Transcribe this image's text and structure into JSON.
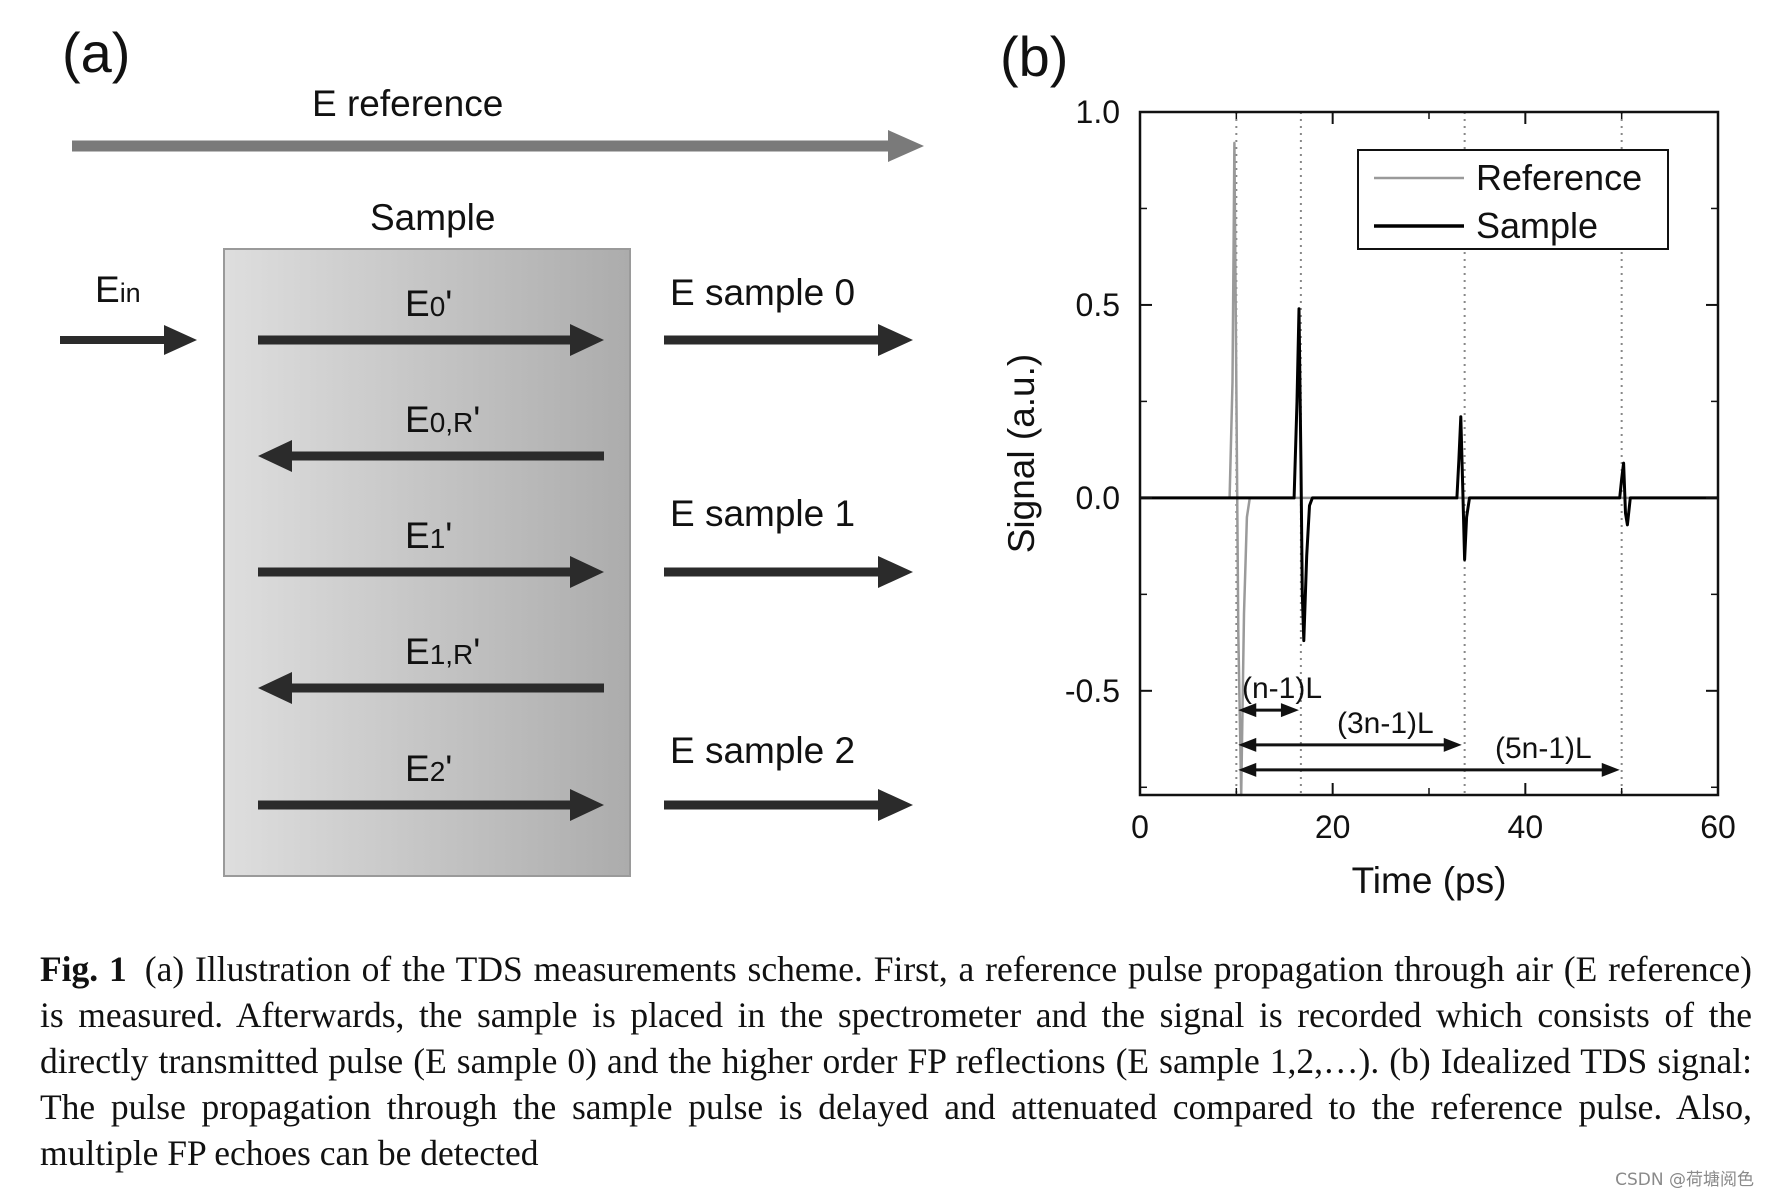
{
  "panel_a": {
    "label": "(a)",
    "reference_label": "E reference",
    "sample_label": "Sample",
    "input_label": {
      "main": "E",
      "sub": "in"
    },
    "internal_arrows": [
      {
        "main": "E",
        "sub": "0",
        "suffix": "'",
        "direction": "right"
      },
      {
        "main": "E",
        "sub": "0,R",
        "suffix": "'",
        "direction": "left"
      },
      {
        "main": "E",
        "sub": "1",
        "suffix": "'",
        "direction": "right"
      },
      {
        "main": "E",
        "sub": "1,R",
        "suffix": "'",
        "direction": "left"
      },
      {
        "main": "E",
        "sub": "2",
        "suffix": "'",
        "direction": "right"
      }
    ],
    "outputs": [
      "E sample 0",
      "E sample 1",
      "E sample 2"
    ]
  },
  "panel_b": {
    "label": "(b)",
    "chart_data": {
      "type": "line",
      "xlabel": "Time (ps)",
      "ylabel": "Signal (a.u.)",
      "xlim": [
        0,
        60
      ],
      "ylim": [
        -0.77,
        1.0
      ],
      "xticks": [
        0,
        20,
        40,
        60
      ],
      "xtick_labels": [
        "0",
        "20",
        "40",
        "60"
      ],
      "yticks": [
        1.0,
        0.5,
        0.0,
        -0.5
      ],
      "ytick_labels": [
        "1.0",
        "0.5",
        "0.0",
        "-0.5"
      ],
      "legend": {
        "position": "top-right",
        "entries": [
          "Reference",
          "Sample"
        ]
      },
      "series": [
        {
          "name": "Reference",
          "color": "#9a9a9a",
          "x": [
            0,
            9.3,
            9.6,
            9.8,
            10.0,
            10.2,
            10.5,
            10.8,
            11.1,
            11.4,
            60
          ],
          "y": [
            0,
            0,
            0.3,
            0.92,
            0.3,
            -0.35,
            -0.77,
            -0.3,
            -0.05,
            0,
            0
          ]
        },
        {
          "name": "Sample",
          "color": "#000000",
          "x": [
            0,
            16.0,
            16.3,
            16.5,
            16.7,
            16.85,
            17.0,
            17.3,
            17.6,
            17.9,
            32.9,
            33.1,
            33.3,
            33.5,
            33.7,
            33.9,
            34.2,
            49.8,
            50.0,
            50.2,
            50.4,
            50.6,
            50.9,
            60
          ],
          "y": [
            0,
            0,
            0.25,
            0.49,
            0.1,
            -0.25,
            -0.37,
            -0.15,
            -0.02,
            0,
            0,
            0.1,
            0.21,
            0.03,
            -0.16,
            -0.05,
            0,
            0,
            0.05,
            0.09,
            -0.04,
            -0.07,
            0,
            0
          ]
        }
      ],
      "vertical_markers_x": [
        10.0,
        16.7,
        33.7,
        50.0
      ],
      "annotations": [
        {
          "text": "(n-1)L",
          "from_x": 10.2,
          "to_x": 16.5,
          "y": -0.55
        },
        {
          "text": "(3n-1)L",
          "from_x": 10.2,
          "to_x": 33.4,
          "y": -0.64
        },
        {
          "text": "(5n-1)L",
          "from_x": 10.2,
          "to_x": 49.8,
          "y": -0.705
        }
      ]
    }
  },
  "caption": {
    "label": "Fig. 1",
    "text": "(a) Illustration of the TDS measurements scheme. First, a reference pulse propagation through air (E reference) is measured. Afterwards, the sample is placed in the spectrometer and the signal is recorded which consists of the directly transmitted pulse (E sample 0) and the higher order FP reflections (E sample 1,2,…). (b) Idealized TDS signal: The pulse propagation through the sample pulse is delayed and attenuated compared to the reference pulse. Also, multiple FP echoes can be detected"
  },
  "watermark": "CSDN @荷塘阅色"
}
